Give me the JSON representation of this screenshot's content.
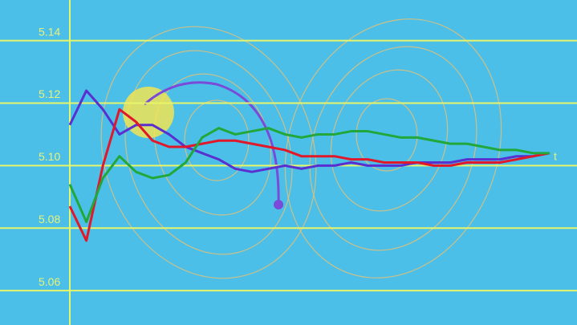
{
  "chart_data": {
    "type": "line",
    "x_label": "t",
    "categories": [
      null,
      null,
      null,
      null,
      null,
      null,
      null,
      null,
      null,
      null,
      null,
      null,
      null,
      null,
      null,
      null,
      null,
      null,
      null,
      null,
      null,
      null,
      null,
      null,
      null,
      null,
      null,
      null,
      null,
      null
    ],
    "ylim": [
      5.049,
      5.153
    ],
    "yticks": [
      5.06,
      5.08,
      {
        "value": 5.1,
        "label": "5.10"
      },
      5.12,
      5.14
    ],
    "grid": true,
    "grid_color": "#e6f56a",
    "background": "#4bbfe8",
    "series": [
      {
        "color": "#5a2fd0",
        "values": [
          5.113,
          5.124,
          5.118,
          5.11,
          5.113,
          5.113,
          5.11,
          5.106,
          5.104,
          5.102,
          5.099,
          5.098,
          5.099,
          5.1,
          5.099,
          5.1,
          5.1,
          5.101,
          5.1,
          5.1,
          5.1,
          5.101,
          5.101,
          5.101,
          5.102,
          5.102,
          5.102,
          5.103,
          5.103,
          5.104
        ]
      },
      {
        "color": "#e0182a",
        "values": [
          5.087,
          5.076,
          5.1,
          5.118,
          5.114,
          5.108,
          5.106,
          5.106,
          5.107,
          5.108,
          5.108,
          5.107,
          5.106,
          5.105,
          5.103,
          5.103,
          5.103,
          5.102,
          5.102,
          5.101,
          5.101,
          5.101,
          5.1,
          5.1,
          5.101,
          5.101,
          5.101,
          5.102,
          5.103,
          5.104
        ]
      },
      {
        "color": "#22a83a",
        "values": [
          5.094,
          5.082,
          5.096,
          5.103,
          5.098,
          5.096,
          5.097,
          5.101,
          5.109,
          5.112,
          5.11,
          5.111,
          5.112,
          5.11,
          5.109,
          5.11,
          5.11,
          5.111,
          5.111,
          5.11,
          5.109,
          5.109,
          5.108,
          5.107,
          5.107,
          5.106,
          5.105,
          5.105,
          5.104,
          5.104
        ]
      }
    ]
  }
}
